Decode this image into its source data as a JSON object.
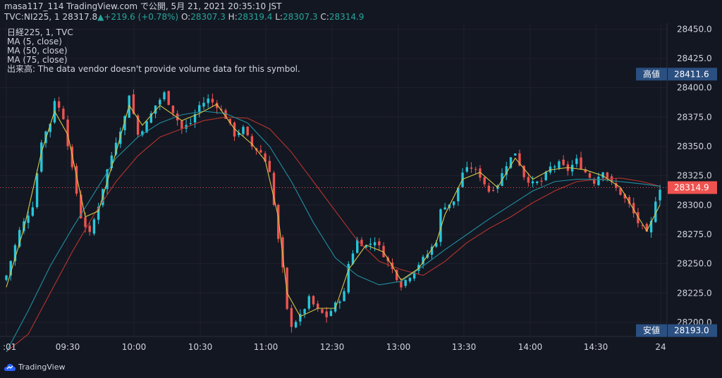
{
  "header": {
    "line1": "masa117_114 TradingView.com で公開, 5月 21, 2021 20:35:10 JST",
    "symbol": "TVC:NI225, 1",
    "last": "28317.8",
    "arrow": "▲",
    "change": "+219.6 (+0.78%)",
    "o_label": "O:",
    "o_value": "28307.3",
    "h_label": "H:",
    "h_value": "28319.4",
    "l_label": "L:",
    "l_value": "28307.3",
    "c_label": "C:",
    "c_value": "28314.9"
  },
  "legend": {
    "title": "日経225, 1, TVC",
    "ma5": "MA (5, close)",
    "ma50": "MA (50, close)",
    "ma75": "MA (75, close)",
    "volume_note": "出来高: The data vendor doesn't provide volume data for this symbol."
  },
  "logo": {
    "text": "TradingView",
    "icon": "tradingview-cloud-icon"
  },
  "colors": {
    "background": "#131722",
    "grid": "#1f222c",
    "up": "#26c6da",
    "down": "#ef5350",
    "ma5": "#d6c848",
    "ma50": "#1f8fa0",
    "ma75": "#b8342c",
    "price_label_bg": "#2a4f80",
    "current_price_bg": "#ef5350",
    "axis_text": "#d1d4dc"
  },
  "chart_data": {
    "type": "candlestick",
    "x_ticks": [
      ":01",
      "09:30",
      "10:00",
      "10:30",
      "11:00",
      "12:30",
      "13:00",
      "13:30",
      "14:00",
      "14:30",
      "24"
    ],
    "y_ticks": [
      "28450.0",
      "28425.0",
      "28400.0",
      "28375.0",
      "28350.0",
      "28325.0",
      "28300.0",
      "28275.0",
      "28250.0",
      "28225.0",
      "28200.0"
    ],
    "ylim": [
      28188,
      28455
    ],
    "high_label": "高値",
    "high_value": "28411.6",
    "low_label": "安値",
    "low_value": "28193.0",
    "current_value": "28314.9",
    "close_path": [
      [
        0,
        28240
      ],
      [
        3,
        28278
      ],
      [
        6,
        28300
      ],
      [
        8,
        28355
      ],
      [
        10,
        28370
      ],
      [
        11,
        28390
      ],
      [
        13,
        28375
      ],
      [
        15,
        28330
      ],
      [
        17,
        28290
      ],
      [
        19,
        28275
      ],
      [
        21,
        28300
      ],
      [
        23,
        28330
      ],
      [
        25,
        28355
      ],
      [
        27,
        28375
      ],
      [
        28,
        28395
      ],
      [
        30,
        28360
      ],
      [
        32,
        28370
      ],
      [
        34,
        28385
      ],
      [
        36,
        28395
      ],
      [
        38,
        28380
      ],
      [
        40,
        28365
      ],
      [
        42,
        28370
      ],
      [
        44,
        28385
      ],
      [
        46,
        28390
      ],
      [
        48,
        28385
      ],
      [
        50,
        28375
      ],
      [
        52,
        28360
      ],
      [
        54,
        28365
      ],
      [
        56,
        28350
      ],
      [
        58,
        28345
      ],
      [
        60,
        28330
      ],
      [
        61,
        28300
      ],
      [
        62,
        28270
      ],
      [
        63,
        28245
      ],
      [
        64,
        28210
      ],
      [
        65,
        28198
      ],
      [
        67,
        28205
      ],
      [
        69,
        28220
      ],
      [
        71,
        28210
      ],
      [
        73,
        28205
      ],
      [
        75,
        28215
      ],
      [
        77,
        28225
      ],
      [
        78,
        28250
      ],
      [
        80,
        28270
      ],
      [
        82,
        28265
      ],
      [
        84,
        28270
      ],
      [
        86,
        28258
      ],
      [
        88,
        28245
      ],
      [
        90,
        28232
      ],
      [
        92,
        28240
      ],
      [
        94,
        28250
      ],
      [
        96,
        28258
      ],
      [
        98,
        28270
      ],
      [
        99,
        28295
      ],
      [
        100,
        28300
      ],
      [
        102,
        28302
      ],
      [
        104,
        28328
      ],
      [
        106,
        28332
      ],
      [
        108,
        28325
      ],
      [
        110,
        28312
      ],
      [
        112,
        28318
      ],
      [
        114,
        28335
      ],
      [
        116,
        28345
      ],
      [
        118,
        28325
      ],
      [
        120,
        28318
      ],
      [
        122,
        28320
      ],
      [
        124,
        28332
      ],
      [
        126,
        28335
      ],
      [
        128,
        28330
      ],
      [
        130,
        28338
      ],
      [
        132,
        28328
      ],
      [
        134,
        28320
      ],
      [
        136,
        28330
      ],
      [
        138,
        28318
      ],
      [
        140,
        28310
      ],
      [
        142,
        28300
      ],
      [
        144,
        28285
      ],
      [
        146,
        28275
      ],
      [
        147,
        28285
      ],
      [
        148,
        28305
      ],
      [
        149,
        28315
      ]
    ],
    "ma5_path": [
      [
        0,
        28230
      ],
      [
        4,
        28280
      ],
      [
        8,
        28345
      ],
      [
        11,
        28380
      ],
      [
        14,
        28360
      ],
      [
        18,
        28290
      ],
      [
        21,
        28295
      ],
      [
        25,
        28345
      ],
      [
        28,
        28385
      ],
      [
        31,
        28368
      ],
      [
        35,
        28385
      ],
      [
        40,
        28372
      ],
      [
        44,
        28378
      ],
      [
        48,
        28386
      ],
      [
        52,
        28365
      ],
      [
        56,
        28352
      ],
      [
        59,
        28338
      ],
      [
        62,
        28290
      ],
      [
        64,
        28225
      ],
      [
        67,
        28205
      ],
      [
        71,
        28212
      ],
      [
        75,
        28212
      ],
      [
        78,
        28245
      ],
      [
        82,
        28266
      ],
      [
        86,
        28260
      ],
      [
        90,
        28236
      ],
      [
        94,
        28246
      ],
      [
        98,
        28268
      ],
      [
        100,
        28292
      ],
      [
        104,
        28322
      ],
      [
        108,
        28328
      ],
      [
        112,
        28315
      ],
      [
        116,
        28340
      ],
      [
        120,
        28322
      ],
      [
        124,
        28330
      ],
      [
        128,
        28332
      ],
      [
        132,
        28330
      ],
      [
        136,
        28325
      ],
      [
        140,
        28315
      ],
      [
        144,
        28290
      ],
      [
        146,
        28278
      ],
      [
        149,
        28300
      ]
    ],
    "ma50_path": [
      [
        0,
        28175
      ],
      [
        5,
        28210
      ],
      [
        10,
        28248
      ],
      [
        15,
        28280
      ],
      [
        20,
        28310
      ],
      [
        25,
        28340
      ],
      [
        30,
        28358
      ],
      [
        35,
        28370
      ],
      [
        40,
        28377
      ],
      [
        45,
        28380
      ],
      [
        50,
        28378
      ],
      [
        55,
        28370
      ],
      [
        60,
        28350
      ],
      [
        65,
        28320
      ],
      [
        70,
        28285
      ],
      [
        75,
        28255
      ],
      [
        80,
        28240
      ],
      [
        85,
        28232
      ],
      [
        90,
        28235
      ],
      [
        95,
        28248
      ],
      [
        100,
        28262
      ],
      [
        105,
        28275
      ],
      [
        110,
        28288
      ],
      [
        115,
        28300
      ],
      [
        120,
        28312
      ],
      [
        125,
        28320
      ],
      [
        130,
        28322
      ],
      [
        135,
        28322
      ],
      [
        140,
        28320
      ],
      [
        145,
        28318
      ],
      [
        149,
        28316
      ]
    ],
    "ma75_path": [
      [
        0,
        28175
      ],
      [
        5,
        28190
      ],
      [
        10,
        28225
      ],
      [
        15,
        28260
      ],
      [
        20,
        28292
      ],
      [
        25,
        28320
      ],
      [
        30,
        28342
      ],
      [
        35,
        28358
      ],
      [
        40,
        28365
      ],
      [
        45,
        28372
      ],
      [
        50,
        28375
      ],
      [
        55,
        28374
      ],
      [
        60,
        28365
      ],
      [
        65,
        28345
      ],
      [
        70,
        28320
      ],
      [
        75,
        28295
      ],
      [
        80,
        28270
      ],
      [
        85,
        28252
      ],
      [
        90,
        28245
      ],
      [
        95,
        28240
      ],
      [
        100,
        28252
      ],
      [
        105,
        28268
      ],
      [
        110,
        28280
      ],
      [
        115,
        28290
      ],
      [
        120,
        28302
      ],
      [
        125,
        28312
      ],
      [
        130,
        28320
      ],
      [
        135,
        28322
      ],
      [
        140,
        28323
      ],
      [
        145,
        28320
      ],
      [
        149,
        28316
      ]
    ]
  }
}
